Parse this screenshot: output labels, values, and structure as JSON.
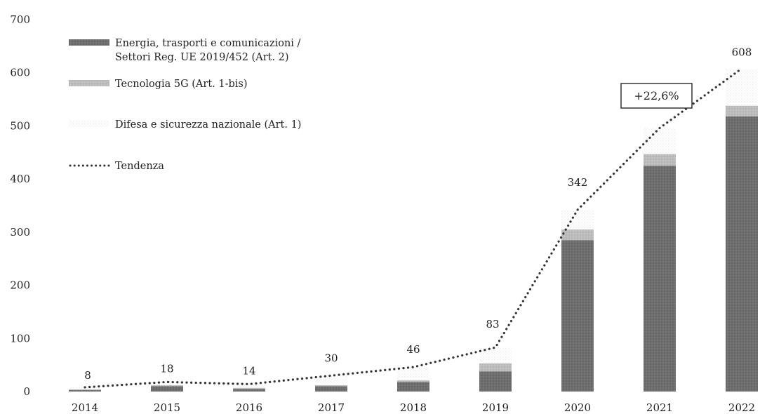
{
  "chart_data": {
    "type": "bar",
    "stacked": true,
    "categories": [
      "2014",
      "2015",
      "2016",
      "2017",
      "2018",
      "2019",
      "2020",
      "2021",
      "2022"
    ],
    "series": [
      {
        "name": "Energia, trasporti e comunicazioni / Settori Reg. UE 2019/452 (Art. 2)",
        "values": [
          3,
          10,
          5,
          10,
          18,
          38,
          285,
          425,
          518
        ],
        "color": "#6b6b6b"
      },
      {
        "name": "Tecnologia 5G (Art. 1-bis)",
        "values": [
          1,
          2,
          2,
          2,
          3,
          15,
          20,
          22,
          20
        ],
        "color": "#b8b8b8"
      },
      {
        "name": "Difesa e sicurezza nazionale (Art. 1)",
        "values": [
          4,
          6,
          7,
          18,
          25,
          30,
          37,
          49,
          70
        ],
        "color": "#eeeeee"
      }
    ],
    "totals": [
      8,
      18,
      14,
      30,
      46,
      83,
      342,
      496,
      608
    ],
    "trend": {
      "name": "Tendenza",
      "values": [
        8,
        18,
        14,
        30,
        46,
        83,
        342,
        496,
        608
      ],
      "color": "#333333"
    },
    "ylim": [
      0,
      700
    ],
    "yticks": [
      0,
      100,
      200,
      300,
      400,
      500,
      600,
      700
    ],
    "annotation": "+22,6%",
    "legend_position": "top-left",
    "grid": false
  }
}
